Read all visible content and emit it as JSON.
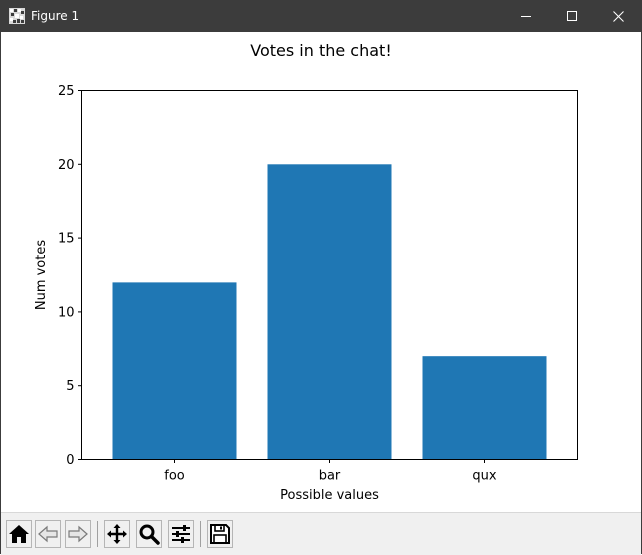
{
  "window": {
    "title": "Figure 1",
    "icons": {
      "app": "matplotlib-figure-icon",
      "minimize": "minimize-icon",
      "maximize": "maximize-icon",
      "close": "close-icon"
    }
  },
  "toolbar": {
    "buttons": [
      {
        "icon": "home-icon"
      },
      {
        "icon": "back-arrow-icon"
      },
      {
        "icon": "forward-arrow-icon"
      },
      {
        "icon": "pan-icon"
      },
      {
        "icon": "zoom-icon"
      },
      {
        "icon": "configure-subplots-icon"
      },
      {
        "icon": "save-icon"
      }
    ]
  },
  "chart_data": {
    "type": "bar",
    "title": "Votes in the chat!",
    "xlabel": "Possible values",
    "ylabel": "Num votes",
    "categories": [
      "foo",
      "bar",
      "qux"
    ],
    "values": [
      12,
      20,
      7
    ],
    "ylim": [
      0,
      25
    ],
    "yticks": [
      0,
      5,
      10,
      15,
      20,
      25
    ],
    "grid": false,
    "color": "#1f77b4"
  }
}
